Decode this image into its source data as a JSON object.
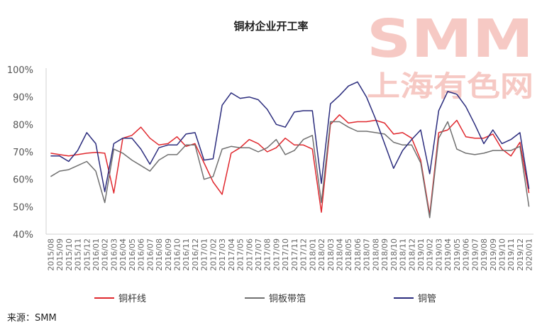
{
  "watermark": {
    "brand": "SMM",
    "cn": "上海有色网"
  },
  "source": "来源：SMM",
  "chart_data": {
    "type": "line",
    "title": "铜材企业开工率",
    "xlabel": "",
    "ylabel": "",
    "ylim": [
      40,
      100
    ],
    "yticks": [
      "40%",
      "50%",
      "60%",
      "70%",
      "80%",
      "90%",
      "100%"
    ],
    "categories": [
      "2015/08",
      "2015/09",
      "2015/10",
      "2015/11",
      "2015/12",
      "2016/01",
      "2016/02",
      "2016/03",
      "2016/04",
      "2016/05",
      "2016/06",
      "2016/07",
      "2016/08",
      "2016/09",
      "2016/10",
      "2016/11",
      "2016/12",
      "2017/01",
      "2017/02",
      "2017/03",
      "2017/04",
      "2017/05",
      "2017/06",
      "2017/07",
      "2017/08",
      "2017/09",
      "2017/10",
      "2017/11",
      "2017/12",
      "2018/01",
      "2018/02",
      "2018/03",
      "2018/04",
      "2018/05",
      "2018/06",
      "2018/07",
      "2018/08",
      "2018/09",
      "2018/10",
      "2018/11",
      "2018/12",
      "2019/01",
      "2019/02",
      "2019/03",
      "2019/04",
      "2019/05",
      "2019/06",
      "2019/07",
      "2019/08",
      "2019/09",
      "2019/10",
      "2019/11",
      "2019/12",
      "2020/01"
    ],
    "legend_position": "bottom",
    "grid": false,
    "series": [
      {
        "name": "铜杆线",
        "color": "#e0282e",
        "values": [
          69.5,
          69.0,
          68.5,
          69.0,
          69.5,
          69.8,
          69.5,
          55.0,
          75.0,
          76.0,
          79.0,
          75.0,
          72.5,
          73.0,
          75.5,
          72.0,
          73.0,
          66.0,
          59.0,
          54.5,
          69.5,
          71.5,
          74.5,
          73.0,
          70.0,
          71.5,
          75.0,
          72.5,
          72.5,
          71.0,
          48.0,
          80.0,
          83.5,
          80.5,
          81.0,
          81.0,
          81.5,
          80.5,
          76.5,
          77.0,
          75.0,
          67.0,
          47.0,
          77.0,
          78.0,
          81.5,
          75.5,
          75.0,
          75.0,
          76.5,
          71.0,
          68.5,
          73.5,
          55.0
        ]
      },
      {
        "name": "铜板带箔",
        "color": "#707070",
        "values": [
          61.0,
          63.0,
          63.5,
          65.0,
          66.5,
          63.0,
          51.5,
          71.0,
          69.5,
          67.0,
          65.0,
          63.0,
          67.0,
          69.0,
          69.0,
          72.5,
          72.5,
          60.0,
          61.0,
          71.0,
          72.0,
          71.5,
          71.5,
          70.0,
          71.5,
          74.5,
          69.0,
          70.5,
          74.5,
          76.0,
          51.5,
          81.0,
          81.0,
          79.0,
          77.5,
          77.5,
          77.0,
          76.5,
          73.5,
          72.5,
          72.5,
          66.0,
          46.0,
          75.0,
          81.0,
          71.0,
          69.5,
          69.0,
          69.5,
          70.5,
          70.5,
          70.5,
          72.0,
          50.0
        ]
      },
      {
        "name": "铜管",
        "color": "#2b2c7d",
        "values": [
          68.5,
          68.5,
          66.5,
          70.5,
          77.0,
          73.0,
          55.5,
          73.0,
          75.0,
          75.0,
          71.0,
          65.5,
          71.5,
          72.5,
          72.5,
          76.5,
          77.0,
          67.0,
          67.5,
          87.0,
          91.5,
          89.5,
          90.0,
          89.0,
          85.5,
          80.0,
          79.0,
          84.5,
          85.0,
          85.0,
          58.5,
          87.5,
          90.5,
          94.0,
          95.5,
          90.0,
          82.0,
          73.0,
          64.0,
          70.5,
          74.5,
          78.0,
          62.0,
          85.0,
          92.0,
          91.0,
          86.5,
          80.0,
          73.0,
          78.0,
          73.0,
          74.5,
          77.0,
          56.5
        ]
      }
    ]
  }
}
